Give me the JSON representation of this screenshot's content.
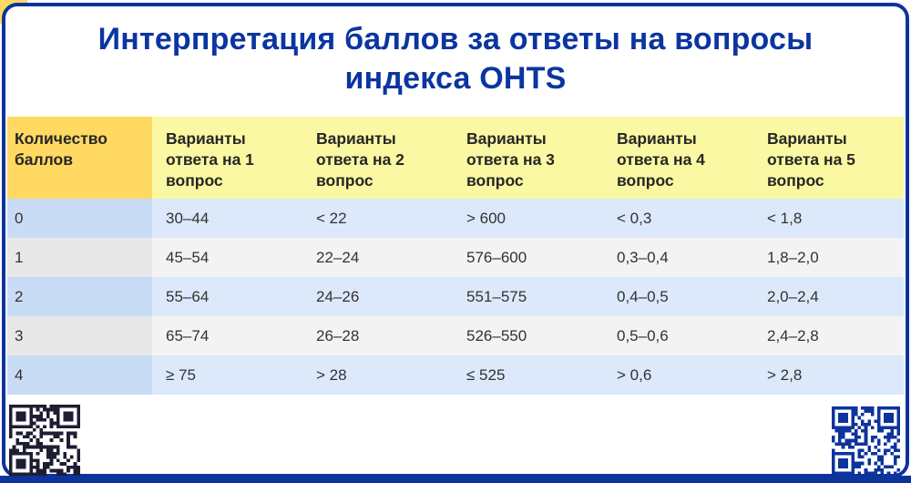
{
  "title": {
    "line1": "Интерпретация баллов за ответы на вопросы",
    "line2": "индекса OHTS"
  },
  "chart_data": {
    "type": "table",
    "title": "Интерпретация баллов за ответы на вопросы индекса OHTS",
    "columns": [
      "Количество баллов",
      "Варианты ответа на 1 вопрос",
      "Варианты ответа на 2 вопрос",
      "Варианты ответа на 3 вопрос",
      "Варианты ответа на 4 вопрос",
      "Варианты ответа на 5 вопрос"
    ],
    "rows": [
      [
        "0",
        "30–44",
        "< 22",
        "> 600",
        "< 0,3",
        "< 1,8"
      ],
      [
        "1",
        "45–54",
        "22–24",
        "576–600",
        "0,3–0,4",
        "1,8–2,0"
      ],
      [
        "2",
        "55–64",
        "24–26",
        "551–575",
        "0,4–0,5",
        "2,0–2,4"
      ],
      [
        "3",
        "65–74",
        "26–28",
        "526–550",
        "0,5–0,6",
        "2,4–2,8"
      ],
      [
        "4",
        "≥ 75",
        "> 28",
        "≤ 525",
        "> 0,6",
        "> 2,8"
      ]
    ]
  },
  "icons": {
    "bottom_left": "qr-code-icon",
    "bottom_right": "qr-code-icon"
  },
  "colors": {
    "accent_blue": "#0d339c",
    "title_blue": "#0b35a1",
    "gold": "#ffd961",
    "light_yellow": "#faf8a2",
    "row_blue": "#dce9fa",
    "row_blue_first_col": "#c9dcf6",
    "row_gray": "#f3f3f3",
    "row_gray_first_col": "#e8e8e8",
    "qr_left": "#1e1e32",
    "qr_right": "#0d339c",
    "header_text": "#262626",
    "body_text": "#323232"
  }
}
